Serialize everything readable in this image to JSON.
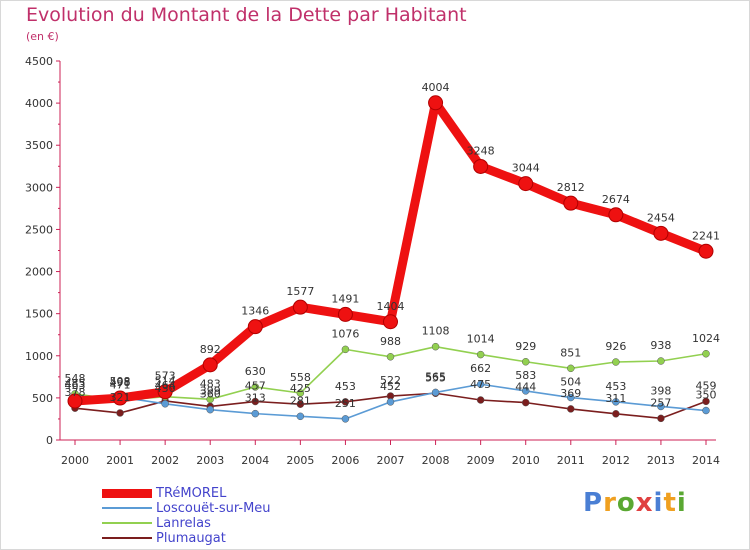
{
  "chart_data": {
    "type": "line",
    "title": "Evolution du Montant de la Dette par Habitant",
    "subtitle": "(en €)",
    "x": [
      "2000",
      "2001",
      "2002",
      "2003",
      "2004",
      "2005",
      "2006",
      "2007",
      "2008",
      "2009",
      "2010",
      "2011",
      "2012",
      "2013",
      "2014"
    ],
    "ylim": [
      0,
      4500
    ],
    "yticks": [
      0,
      500,
      1000,
      1500,
      2000,
      2500,
      3000,
      3500,
      4000,
      4500
    ],
    "grid": false,
    "legend_position": "bottom-left",
    "series": [
      {
        "name": "TRéMOREL",
        "color": "#ee1111",
        "values": [
          463,
          498,
          573,
          892,
          1346,
          1577,
          1491,
          1404,
          4004,
          3248,
          3044,
          2812,
          2674,
          2454,
          2241
        ]
      },
      {
        "name": "Loscouët-sur-Meu",
        "color": "#5b9bd5",
        "values": [
          485,
          508,
          430,
          360,
          313,
          281,
          251,
          452,
          565,
          662,
          583,
          504,
          453,
          398,
          350
        ]
      },
      {
        "name": "Lanrelas",
        "color": "#92d050",
        "values": [
          548,
          471,
          514,
          483,
          630,
          558,
          1076,
          988,
          1108,
          1014,
          929,
          851,
          926,
          938,
          1024
        ]
      },
      {
        "name": "Plumaugat",
        "color": "#7b1e1e",
        "values": [
          378,
          321,
          464,
          399,
          457,
          425,
          453,
          522,
          555,
          475,
          444,
          369,
          311,
          257,
          459
        ]
      }
    ]
  },
  "logo": {
    "letters": [
      "P",
      "r",
      "o",
      "x",
      "i",
      "t",
      "i"
    ],
    "colors": [
      "#4a7fd4",
      "#f0a020",
      "#5aa832",
      "#e04040",
      "#4a7fd4",
      "#f0a020",
      "#5aa832"
    ]
  }
}
